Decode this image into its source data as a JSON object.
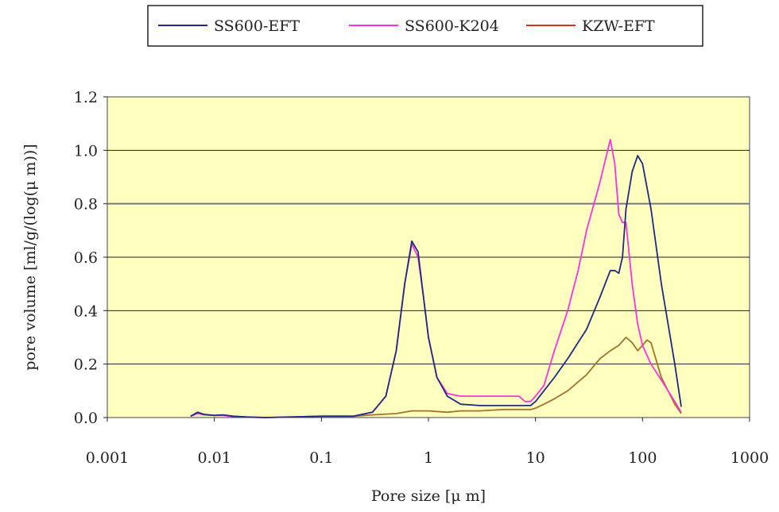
{
  "chart_data": {
    "type": "line",
    "x_scale": "log",
    "xlabel": "Pore size [μ m]",
    "ylabel": "pore volume [ml/g/(log(μ m))]",
    "xlim": [
      0.001,
      1000
    ],
    "ylim": [
      0,
      1.2
    ],
    "x_tick_labels": [
      "0.001",
      "0.01",
      "0.1",
      "1",
      "10",
      "100",
      "1000"
    ],
    "x_ticks": [
      0.001,
      0.01,
      0.1,
      1,
      10,
      100,
      1000
    ],
    "y_tick_labels": [
      "0.0",
      "0.2",
      "0.4",
      "0.6",
      "0.8",
      "1.0",
      "1.2"
    ],
    "y_ticks": [
      0,
      0.2,
      0.4,
      0.6,
      0.8,
      1.0,
      1.2
    ],
    "grid": "horizontal",
    "plot_background": "#ffffc0",
    "legend_position": "top",
    "series": [
      {
        "name": "SS600-EFT",
        "color": "#1f2a80",
        "points": [
          [
            0.006,
            0.005
          ],
          [
            0.007,
            0.02
          ],
          [
            0.008,
            0.012
          ],
          [
            0.01,
            0.008
          ],
          [
            0.012,
            0.01
          ],
          [
            0.015,
            0.005
          ],
          [
            0.02,
            0.002
          ],
          [
            0.03,
            0.0
          ],
          [
            0.1,
            0.005
          ],
          [
            0.2,
            0.005
          ],
          [
            0.3,
            0.02
          ],
          [
            0.4,
            0.08
          ],
          [
            0.5,
            0.25
          ],
          [
            0.6,
            0.5
          ],
          [
            0.7,
            0.66
          ],
          [
            0.8,
            0.62
          ],
          [
            0.9,
            0.45
          ],
          [
            1.0,
            0.3
          ],
          [
            1.2,
            0.15
          ],
          [
            1.5,
            0.08
          ],
          [
            2,
            0.05
          ],
          [
            3,
            0.045
          ],
          [
            5,
            0.045
          ],
          [
            7,
            0.045
          ],
          [
            9,
            0.045
          ],
          [
            10,
            0.06
          ],
          [
            12,
            0.1
          ],
          [
            15,
            0.15
          ],
          [
            20,
            0.22
          ],
          [
            30,
            0.33
          ],
          [
            40,
            0.45
          ],
          [
            50,
            0.55
          ],
          [
            55,
            0.55
          ],
          [
            60,
            0.54
          ],
          [
            65,
            0.6
          ],
          [
            70,
            0.78
          ],
          [
            80,
            0.92
          ],
          [
            90,
            0.98
          ],
          [
            100,
            0.95
          ],
          [
            120,
            0.78
          ],
          [
            150,
            0.5
          ],
          [
            200,
            0.2
          ],
          [
            230,
            0.04
          ]
        ]
      },
      {
        "name": "SS600-K204",
        "color": "#ff33dd",
        "points": [
          [
            0.006,
            0.005
          ],
          [
            0.007,
            0.015
          ],
          [
            0.008,
            0.01
          ],
          [
            0.01,
            0.008
          ],
          [
            0.012,
            0.008
          ],
          [
            0.015,
            0.004
          ],
          [
            0.02,
            0.002
          ],
          [
            0.03,
            0.0
          ],
          [
            0.1,
            0.005
          ],
          [
            0.2,
            0.005
          ],
          [
            0.3,
            0.02
          ],
          [
            0.4,
            0.08
          ],
          [
            0.5,
            0.25
          ],
          [
            0.6,
            0.5
          ],
          [
            0.7,
            0.65
          ],
          [
            0.8,
            0.6
          ],
          [
            0.9,
            0.45
          ],
          [
            1.0,
            0.3
          ],
          [
            1.2,
            0.15
          ],
          [
            1.5,
            0.09
          ],
          [
            2,
            0.08
          ],
          [
            3,
            0.08
          ],
          [
            5,
            0.08
          ],
          [
            7,
            0.08
          ],
          [
            8,
            0.06
          ],
          [
            9,
            0.06
          ],
          [
            10,
            0.08
          ],
          [
            12,
            0.12
          ],
          [
            15,
            0.25
          ],
          [
            20,
            0.4
          ],
          [
            25,
            0.55
          ],
          [
            30,
            0.7
          ],
          [
            40,
            0.88
          ],
          [
            50,
            1.04
          ],
          [
            55,
            0.95
          ],
          [
            60,
            0.76
          ],
          [
            65,
            0.73
          ],
          [
            70,
            0.73
          ],
          [
            80,
            0.5
          ],
          [
            90,
            0.35
          ],
          [
            100,
            0.27
          ],
          [
            120,
            0.2
          ],
          [
            150,
            0.14
          ],
          [
            200,
            0.06
          ],
          [
            230,
            0.02
          ]
        ]
      },
      {
        "name": "KZW-EFT",
        "color": "#cc3322",
        "points": [
          [
            0.2,
            0.005
          ],
          [
            0.3,
            0.01
          ],
          [
            0.5,
            0.015
          ],
          [
            0.7,
            0.025
          ],
          [
            1,
            0.025
          ],
          [
            1.5,
            0.02
          ],
          [
            2,
            0.025
          ],
          [
            3,
            0.025
          ],
          [
            5,
            0.03
          ],
          [
            7,
            0.03
          ],
          [
            9,
            0.03
          ],
          [
            10,
            0.035
          ],
          [
            12,
            0.05
          ],
          [
            15,
            0.07
          ],
          [
            20,
            0.1
          ],
          [
            30,
            0.16
          ],
          [
            40,
            0.22
          ],
          [
            50,
            0.25
          ],
          [
            60,
            0.27
          ],
          [
            70,
            0.3
          ],
          [
            80,
            0.28
          ],
          [
            90,
            0.25
          ],
          [
            100,
            0.27
          ],
          [
            110,
            0.29
          ],
          [
            120,
            0.28
          ],
          [
            150,
            0.15
          ],
          [
            200,
            0.05
          ],
          [
            230,
            0.015
          ]
        ]
      }
    ]
  }
}
